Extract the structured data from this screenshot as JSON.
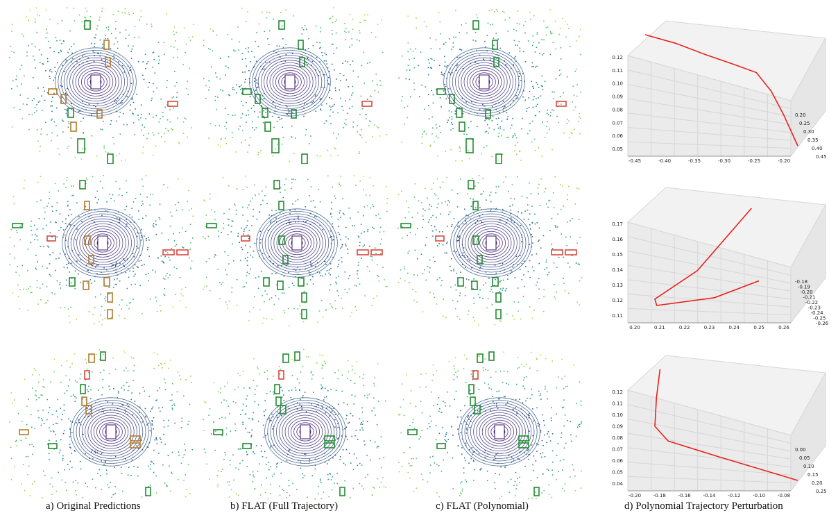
{
  "captions": {
    "a": "a) Original Predictions",
    "b": "b) FLAT (Full Trajectory)",
    "c": "c) FLAT (Polynomial)",
    "d": "d) Polynomial Trajectory Perturbation"
  },
  "colors": {
    "gt_box": "#1e8a2e",
    "pred_box": "#d9483b",
    "match_box": "#b07a2a",
    "trajectory": "#e8221a",
    "lidar_near": "#3b0f6f",
    "lidar_far": "#e6e11c"
  },
  "chart_data": [
    {
      "type": "line",
      "panel": "row1-trajectory",
      "x_ticks": [
        "-0.45",
        "-0.40",
        "-0.35",
        "-0.30",
        "-0.25",
        "-0.20"
      ],
      "y_ticks": [
        "0.20",
        "0.25",
        "0.30",
        "0.35",
        "0.40",
        "0.45"
      ],
      "z_ticks": [
        "0.12",
        "0.11",
        "0.10",
        "0.09",
        "0.08",
        "0.07",
        "0.06",
        "0.05"
      ],
      "series": [
        {
          "values": [
            [
              -0.47,
              0.2,
              0.12
            ],
            [
              -0.42,
              0.24,
              0.115
            ],
            [
              -0.37,
              0.28,
              0.108
            ],
            [
              -0.32,
              0.31,
              0.102
            ],
            [
              -0.28,
              0.33,
              0.097
            ],
            [
              -0.26,
              0.36,
              0.085
            ],
            [
              -0.25,
              0.4,
              0.07
            ],
            [
              -0.24,
              0.45,
              0.05
            ]
          ]
        }
      ]
    },
    {
      "type": "line",
      "panel": "row2-trajectory",
      "x_ticks": [
        "0.20",
        "0.21",
        "0.22",
        "0.23",
        "0.24",
        "0.25",
        "0.26"
      ],
      "y_ticks": [
        "-0.18",
        "-0.19",
        "-0.20",
        "-0.21",
        "-0.22",
        "-0.23",
        "-0.24",
        "-0.25",
        "-0.26"
      ],
      "z_ticks": [
        "0.17",
        "0.16",
        "0.15",
        "0.14",
        "0.13",
        "0.12",
        "0.11"
      ],
      "series": [
        {
          "values": [
            [
              0.24,
              -0.2,
              0.155
            ],
            [
              0.225,
              -0.22,
              0.13
            ],
            [
              0.215,
              -0.24,
              0.118
            ],
            [
              0.22,
              -0.25,
              0.115
            ],
            [
              0.245,
              -0.25,
              0.118
            ],
            [
              0.26,
              -0.24,
              0.125
            ]
          ]
        }
      ]
    },
    {
      "type": "line",
      "panel": "row3-trajectory",
      "x_ticks": [
        "-0.20",
        "-0.18",
        "-0.16",
        "-0.14",
        "-0.12",
        "-0.10",
        "-0.08"
      ],
      "y_ticks": [
        "0.00",
        "0.05",
        "0.10",
        "0.15",
        "0.20",
        "0.25"
      ],
      "z_ticks": [
        "0.12",
        "0.11",
        "0.10",
        "0.09",
        "0.08",
        "0.07",
        "0.06",
        "0.05",
        "0.04"
      ],
      "series": [
        {
          "values": [
            [
              -0.15,
              0.0,
              0.12
            ],
            [
              -0.155,
              0.02,
              0.1
            ],
            [
              -0.16,
              0.05,
              0.08
            ],
            [
              -0.155,
              0.08,
              0.07
            ],
            [
              -0.13,
              0.15,
              0.06
            ],
            [
              -0.09,
              0.25,
              0.045
            ]
          ]
        }
      ]
    }
  ]
}
